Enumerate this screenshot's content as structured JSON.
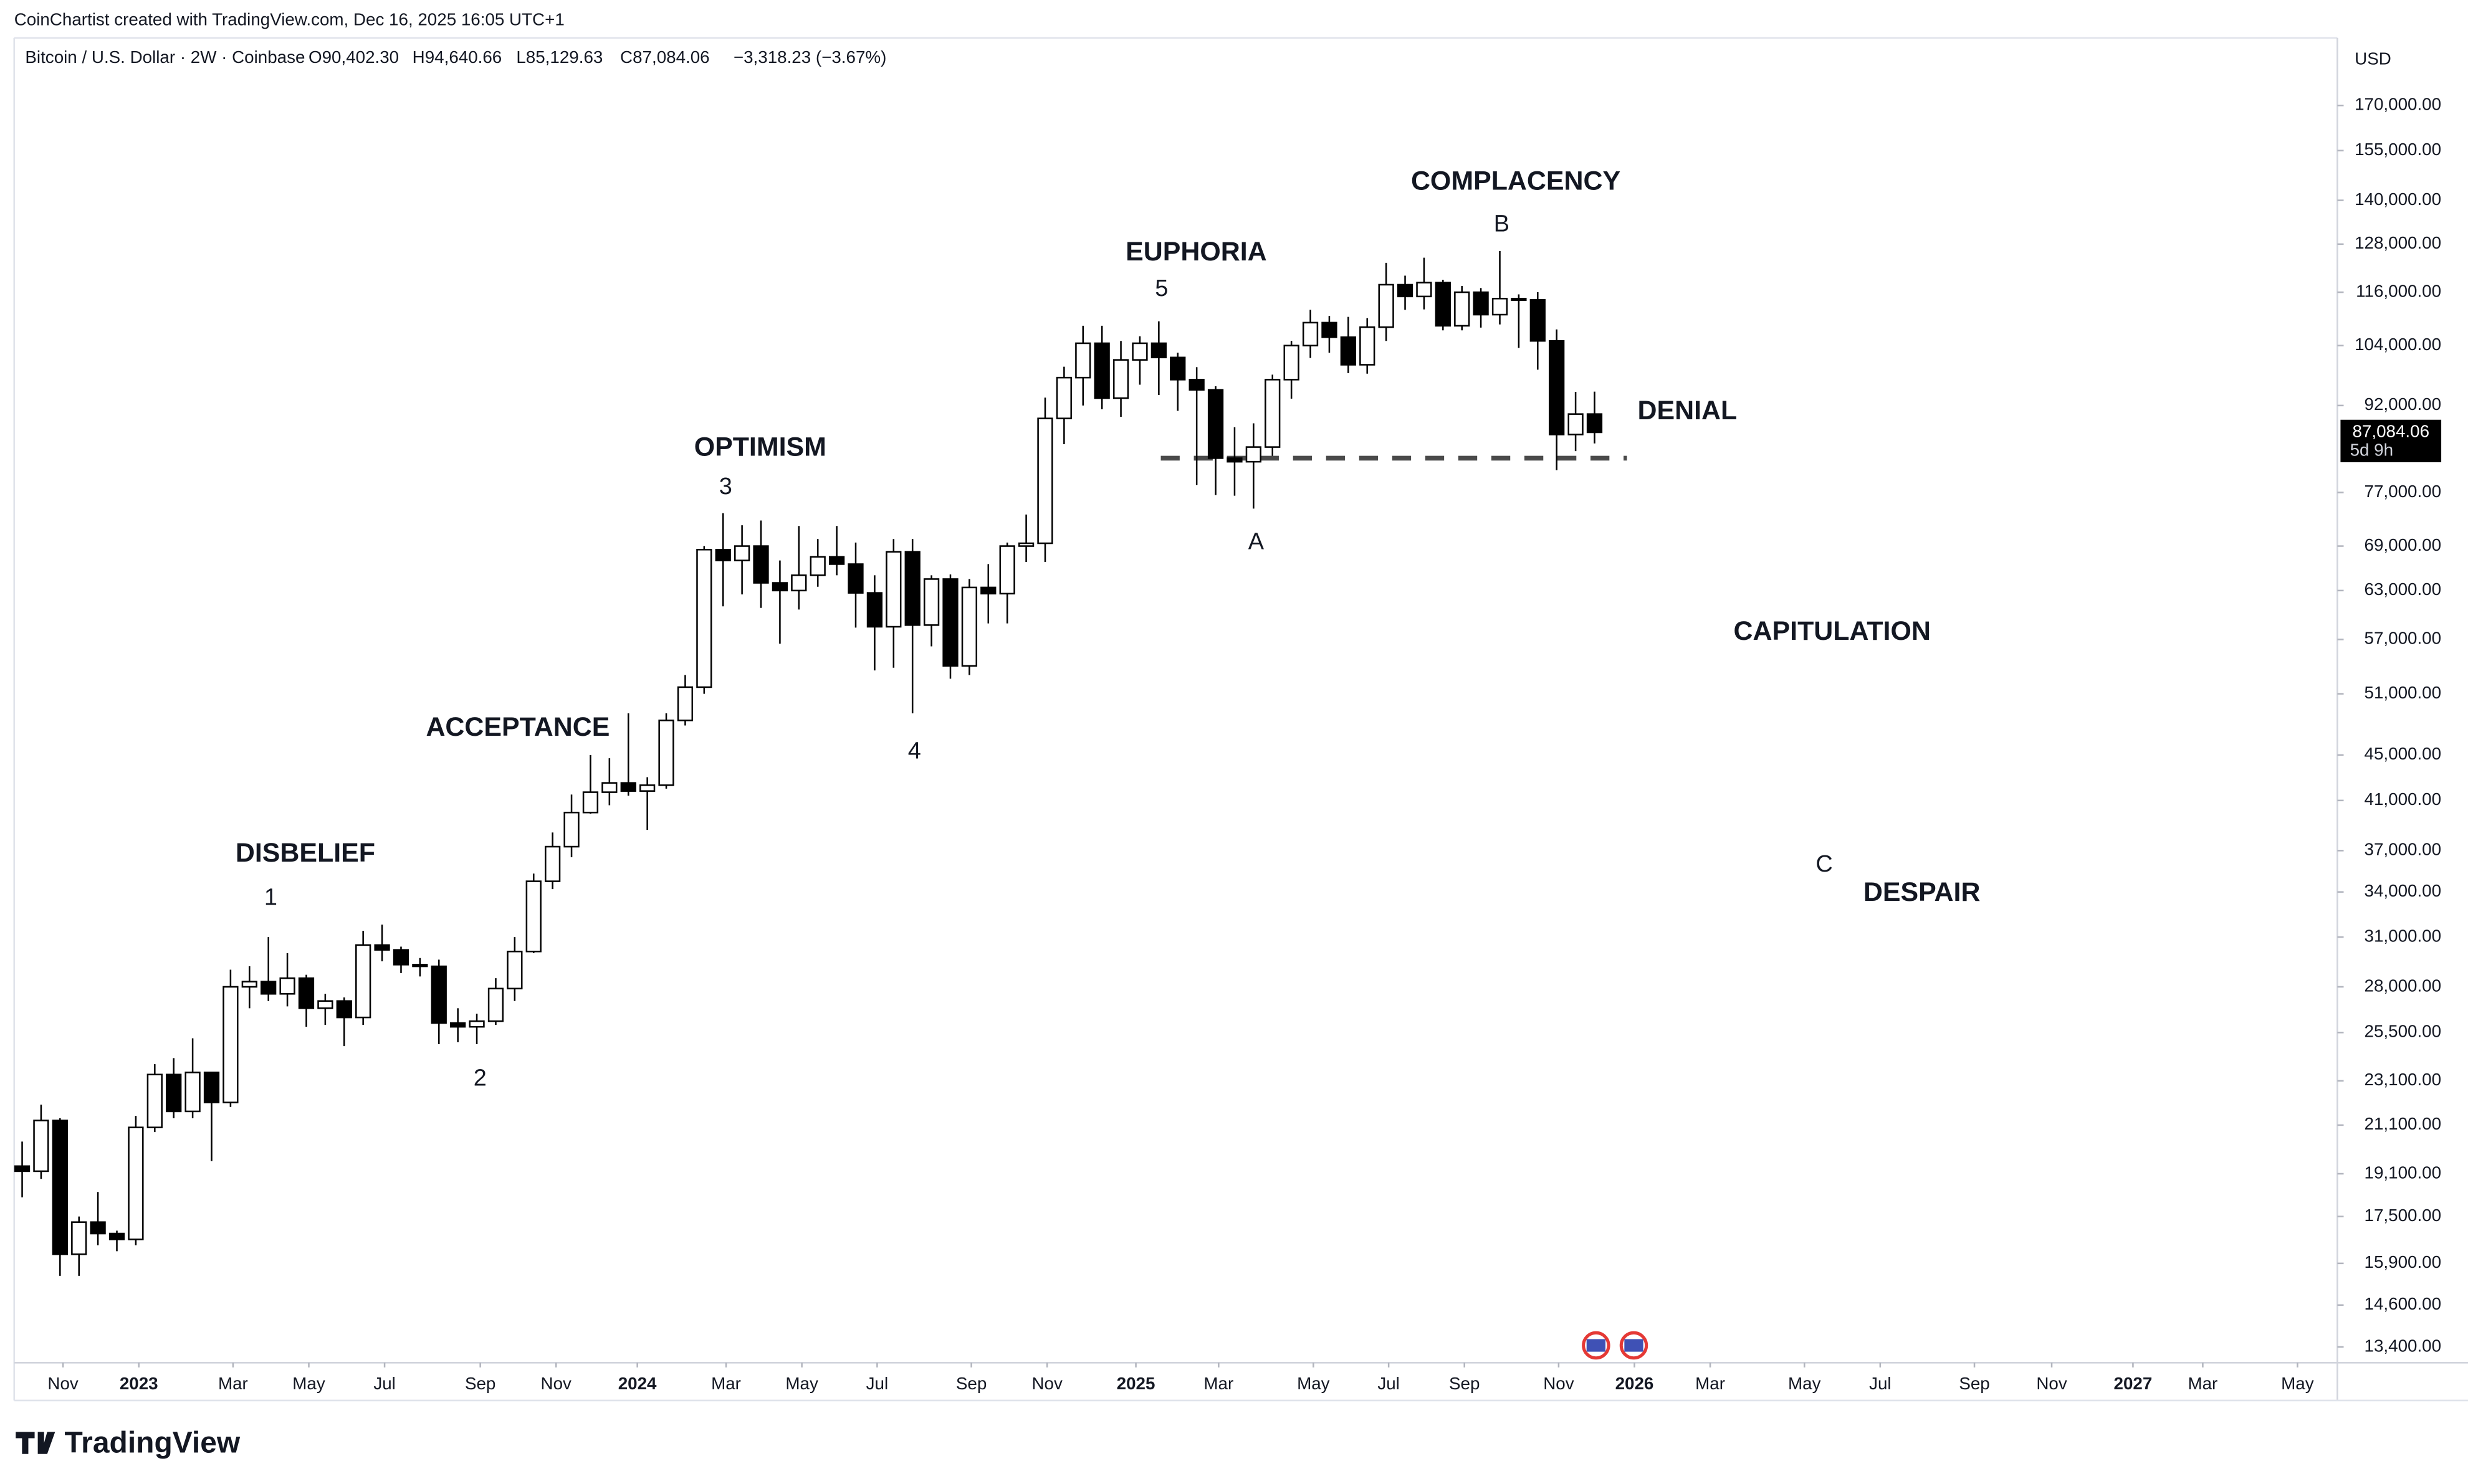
{
  "chart_data": {
    "type": "candlestick",
    "credit": "CoinChartist created with TradingView.com, Dec 16, 2025 16:05 UTC+1",
    "title": "Bitcoin / U.S. Dollar · 2W · Coinbase",
    "ohlc_header": [
      "O90,402.30",
      "H94,640.66",
      "L85,129.63",
      "C87,084.06",
      "−3,318.23 (−3.67%)"
    ],
    "currency": "USD",
    "last_price_label": "87,084.06",
    "countdown": "5d 9h",
    "brand": "TradingView",
    "annotations": [
      "DISBELIEF",
      "1",
      "2",
      "ACCEPTANCE",
      "OPTIMISM",
      "3",
      "4",
      "EUPHORIA",
      "5",
      "A",
      "COMPLACENCY",
      "B",
      "DENIAL",
      "CAPITULATION",
      "C",
      "DESPAIR"
    ],
    "log_scale": true,
    "grid": false,
    "up_color": "#ffffff",
    "down_color": "#000000",
    "support_line": {
      "value": 82600,
      "x": [
        2025.05,
        2025.985
      ],
      "color": "#4a4a4a"
    },
    "xlim": [
      2022.75,
      2027.41
    ],
    "ylim": [
      12975,
      195200
    ],
    "xticks": [
      {
        "value": 2022.848,
        "label": "Nov"
      },
      {
        "value": 2023.0,
        "label": "2023"
      },
      {
        "value": 2023.189,
        "label": "Mar"
      },
      {
        "value": 2023.341,
        "label": "May"
      },
      {
        "value": 2023.493,
        "label": "Jul"
      },
      {
        "value": 2023.685,
        "label": "Sep"
      },
      {
        "value": 2023.837,
        "label": "Nov"
      },
      {
        "value": 2024.0,
        "label": "2024"
      },
      {
        "value": 2024.178,
        "label": "Mar"
      },
      {
        "value": 2024.33,
        "label": "May"
      },
      {
        "value": 2024.481,
        "label": "Jul"
      },
      {
        "value": 2024.67,
        "label": "Sep"
      },
      {
        "value": 2024.822,
        "label": "Nov"
      },
      {
        "value": 2025.0,
        "label": "2025"
      },
      {
        "value": 2025.166,
        "label": "Mar"
      },
      {
        "value": 2025.356,
        "label": "May"
      },
      {
        "value": 2025.507,
        "label": "Jul"
      },
      {
        "value": 2025.659,
        "label": "Sep"
      },
      {
        "value": 2025.848,
        "label": "Nov"
      },
      {
        "value": 2026.0,
        "label": "2026"
      },
      {
        "value": 2026.152,
        "label": "Mar"
      },
      {
        "value": 2026.341,
        "label": "May"
      },
      {
        "value": 2026.493,
        "label": "Jul"
      },
      {
        "value": 2026.682,
        "label": "Sep"
      },
      {
        "value": 2026.837,
        "label": "Nov"
      },
      {
        "value": 2027.0,
        "label": "2027"
      },
      {
        "value": 2027.14,
        "label": "Mar"
      },
      {
        "value": 2027.33,
        "label": "May"
      }
    ],
    "yticks": [
      {
        "value": 170000,
        "label": "170,000.00"
      },
      {
        "value": 155000,
        "label": "155,000.00"
      },
      {
        "value": 140000,
        "label": "140,000.00"
      },
      {
        "value": 128000,
        "label": "128,000.00"
      },
      {
        "value": 116000,
        "label": "116,000.00"
      },
      {
        "value": 104000,
        "label": "104,000.00"
      },
      {
        "value": 92000,
        "label": "92,000.00"
      },
      {
        "value": 77000,
        "label": "77,000.00"
      },
      {
        "value": 69000,
        "label": "69,000.00"
      },
      {
        "value": 63000,
        "label": "63,000.00"
      },
      {
        "value": 57000,
        "label": "57,000.00"
      },
      {
        "value": 51000,
        "label": "51,000.00"
      },
      {
        "value": 45000,
        "label": "45,000.00"
      },
      {
        "value": 41000,
        "label": "41,000.00"
      },
      {
        "value": 37000,
        "label": "37,000.00"
      },
      {
        "value": 34000,
        "label": "34,000.00"
      },
      {
        "value": 31000,
        "label": "31,000.00"
      },
      {
        "value": 28000,
        "label": "28,000.00"
      },
      {
        "value": 25500,
        "label": "25,500.00"
      },
      {
        "value": 23100,
        "label": "23,100.00"
      },
      {
        "value": 21100,
        "label": "21,100.00"
      },
      {
        "value": 19100,
        "label": "19,100.00"
      },
      {
        "value": 17500,
        "label": "17,500.00"
      },
      {
        "value": 15900,
        "label": "15,900.00"
      },
      {
        "value": 14600,
        "label": "14,600.00"
      },
      {
        "value": 13400,
        "label": "13,400.00"
      }
    ],
    "x": [
      2022.766,
      2022.804,
      2022.842,
      2022.88,
      2022.918,
      2022.956,
      2022.994,
      2023.032,
      2023.07,
      2023.108,
      2023.146,
      2023.184,
      2023.222,
      2023.26,
      2023.298,
      2023.336,
      2023.374,
      2023.412,
      2023.45,
      2023.488,
      2023.526,
      2023.564,
      2023.602,
      2023.64,
      2023.678,
      2023.716,
      2023.754,
      2023.792,
      2023.83,
      2023.868,
      2023.906,
      2023.944,
      2023.982,
      2024.02,
      2024.058,
      2024.096,
      2024.134,
      2024.172,
      2024.21,
      2024.248,
      2024.286,
      2024.324,
      2024.362,
      2024.4,
      2024.438,
      2024.476,
      2024.514,
      2024.552,
      2024.59,
      2024.628,
      2024.666,
      2024.704,
      2024.742,
      2024.78,
      2024.818,
      2024.856,
      2024.894,
      2024.932,
      2024.97,
      2025.008,
      2025.046,
      2025.084,
      2025.122,
      2025.16,
      2025.198,
      2025.236,
      2025.274,
      2025.312,
      2025.35,
      2025.388,
      2025.426,
      2025.464,
      2025.502,
      2025.54,
      2025.578,
      2025.616,
      2025.654,
      2025.692,
      2025.73,
      2025.768,
      2025.806,
      2025.844,
      2025.882,
      2025.92
    ],
    "open": [
      19400,
      19200,
      21300,
      16200,
      17300,
      16900,
      16700,
      21000,
      23400,
      21700,
      23500,
      22100,
      28000,
      28300,
      27600,
      28500,
      26800,
      27200,
      26300,
      30500,
      30200,
      29300,
      29200,
      26000,
      25800,
      26100,
      27900,
      30100,
      34750,
      37300,
      40000,
      41700,
      42500,
      41800,
      42300,
      48300,
      51700,
      68500,
      67000,
      69000,
      64000,
      63000,
      65000,
      67500,
      66500,
      62700,
      58500,
      68200,
      58700,
      64500,
      54000,
      63400,
      62600,
      69000,
      69400,
      89600,
      97400,
      104500,
      93400,
      101000,
      104500,
      101500,
      97000,
      95000,
      82600,
      82000,
      84500,
      97000,
      104000,
      109000,
      105800,
      100000,
      108000,
      117800,
      115000,
      118300,
      108300,
      116000,
      110800,
      114500,
      114200,
      105000,
      86700,
      90402.3
    ],
    "high": [
      20400,
      22000,
      21400,
      17500,
      18400,
      17000,
      21500,
      23900,
      24200,
      25200,
      23500,
      29000,
      29200,
      31000,
      30000,
      28700,
      27600,
      27400,
      31400,
      31800,
      30400,
      29700,
      29600,
      26800,
      26500,
      28500,
      31000,
      35300,
      38400,
      41500,
      45000,
      44700,
      49000,
      43000,
      49000,
      53000,
      69000,
      73800,
      72000,
      72700,
      67000,
      71900,
      70000,
      71900,
      69500,
      65000,
      70000,
      70000,
      65000,
      65100,
      64500,
      66500,
      69500,
      73600,
      93500,
      99600,
      108300,
      108300,
      105000,
      106000,
      109300,
      102500,
      99500,
      95700,
      88000,
      88700,
      98000,
      105000,
      111900,
      110500,
      110300,
      110000,
      123200,
      120000,
      124500,
      119000,
      117500,
      117000,
      126200,
      115500,
      116000,
      107500,
      94600,
      94640.66
    ],
    "low": [
      18200,
      18900,
      15500,
      15500,
      16500,
      16300,
      16500,
      20800,
      21400,
      21400,
      19600,
      21900,
      26800,
      27200,
      26900,
      25800,
      25900,
      24800,
      25900,
      29500,
      28800,
      28600,
      24900,
      25000,
      24900,
      25900,
      27200,
      30000,
      34200,
      36500,
      39900,
      40600,
      41400,
      38600,
      42000,
      47800,
      51000,
      61000,
      62500,
      60800,
      56500,
      60600,
      63500,
      65000,
      58400,
      53500,
      53800,
      49000,
      56200,
      52600,
      53000,
      58900,
      58900,
      66800,
      66800,
      85000,
      92000,
      91300,
      89900,
      96000,
      94000,
      91000,
      78200,
      76600,
      76500,
      74500,
      83000,
      93300,
      101400,
      102500,
      98300,
      98200,
      105000,
      111900,
      112000,
      107300,
      107300,
      107900,
      108600,
      103500,
      99000,
      80600,
      83800,
      85129.63
    ],
    "close": [
      19200,
      21300,
      16200,
      17300,
      16900,
      16700,
      21000,
      23400,
      21700,
      23500,
      22100,
      28000,
      28300,
      27600,
      28500,
      26800,
      27200,
      26300,
      30500,
      30200,
      29300,
      29200,
      26000,
      25800,
      26100,
      27900,
      30100,
      34750,
      37300,
      40000,
      41700,
      42500,
      41800,
      42300,
      48300,
      51700,
      68500,
      67000,
      69000,
      64000,
      63000,
      65000,
      67500,
      66500,
      62700,
      58500,
      68200,
      58700,
      64500,
      54000,
      63400,
      62600,
      69000,
      69400,
      89600,
      97400,
      104500,
      93400,
      101000,
      104500,
      101500,
      97000,
      95000,
      82600,
      82000,
      84500,
      97000,
      104000,
      109000,
      105800,
      100000,
      108000,
      117800,
      115000,
      118300,
      108300,
      116000,
      110800,
      114500,
      114200,
      105000,
      86700,
      90400,
      87084.06
    ]
  }
}
